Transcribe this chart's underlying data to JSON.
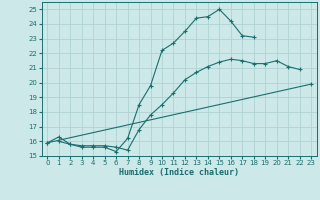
{
  "xlabel": "Humidex (Indice chaleur)",
  "xlim": [
    -0.5,
    23.5
  ],
  "ylim": [
    15,
    25.5
  ],
  "xticks": [
    0,
    1,
    2,
    3,
    4,
    5,
    6,
    7,
    8,
    9,
    10,
    11,
    12,
    13,
    14,
    15,
    16,
    17,
    18,
    19,
    20,
    21,
    22,
    23
  ],
  "yticks": [
    15,
    16,
    17,
    18,
    19,
    20,
    21,
    22,
    23,
    24,
    25
  ],
  "bg_color": "#cce8e8",
  "line_color": "#1a6e6e",
  "grid_color": "#aacece",
  "line1_x": [
    0,
    1,
    2,
    3,
    4,
    5,
    6,
    7,
    8,
    9,
    10,
    11,
    12,
    13,
    14,
    15,
    16,
    17,
    18
  ],
  "line1_y": [
    15.9,
    16.3,
    15.8,
    15.6,
    15.6,
    15.6,
    15.3,
    16.2,
    18.5,
    19.8,
    22.2,
    22.7,
    23.5,
    24.4,
    24.5,
    25.0,
    24.2,
    23.2,
    23.1
  ],
  "line2_x": [
    1,
    2,
    3,
    4,
    5,
    6,
    7,
    8,
    9,
    10,
    11,
    12,
    13,
    14,
    15,
    16,
    17,
    18,
    19,
    20,
    21,
    22
  ],
  "line2_y": [
    16.0,
    15.8,
    15.7,
    15.7,
    15.7,
    15.6,
    15.4,
    16.8,
    17.8,
    18.5,
    19.3,
    20.2,
    20.7,
    21.1,
    21.4,
    21.6,
    21.5,
    21.3,
    21.3,
    21.5,
    21.1,
    20.9
  ],
  "line3_x": [
    0,
    23
  ],
  "line3_y": [
    15.9,
    19.9
  ]
}
